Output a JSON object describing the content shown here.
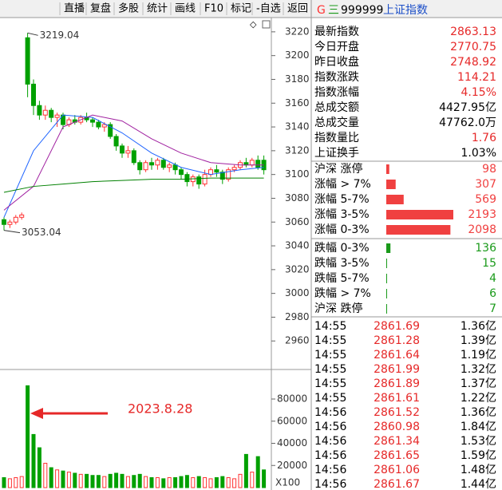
{
  "toolbar": [
    "直播",
    "复盘",
    "多股",
    "统计",
    "画线",
    "F10",
    "标记",
    "-自选",
    "返回"
  ],
  "chart": {
    "type": "candlestick",
    "ylim": [
      2936,
      3232
    ],
    "yticks": [
      3220,
      3200,
      3180,
      3160,
      3140,
      3120,
      3100,
      3080,
      3060,
      3040,
      3020,
      3000,
      2980,
      2960
    ],
    "up_color": "#ff3232",
    "down_color": "#00a000",
    "candles": {
      "open": [
        3062,
        3058,
        3060,
        3064,
        3215,
        3176,
        3158,
        3150,
        3154,
        3148,
        3150,
        3142,
        3146,
        3144,
        3148,
        3146,
        3144,
        3140,
        3142,
        3132,
        3124,
        3118,
        3120,
        3110,
        3104,
        3110,
        3108,
        3112,
        3106,
        3108,
        3104,
        3100,
        3094,
        3098,
        3092,
        3100,
        3104,
        3102,
        3096,
        3104,
        3106,
        3110,
        3108,
        3112,
        3112
      ],
      "close": [
        3058,
        3060,
        3064,
        3066,
        3176,
        3158,
        3150,
        3154,
        3148,
        3150,
        3142,
        3146,
        3144,
        3148,
        3146,
        3144,
        3140,
        3142,
        3132,
        3124,
        3118,
        3120,
        3110,
        3104,
        3110,
        3108,
        3112,
        3106,
        3108,
        3104,
        3100,
        3094,
        3098,
        3092,
        3100,
        3104,
        3102,
        3096,
        3104,
        3106,
        3110,
        3108,
        3112,
        3106,
        3104
      ],
      "high": [
        3064,
        3062,
        3066,
        3068,
        3219.04,
        3180,
        3162,
        3158,
        3156,
        3152,
        3152,
        3148,
        3150,
        3150,
        3152,
        3148,
        3146,
        3144,
        3144,
        3134,
        3126,
        3124,
        3122,
        3112,
        3112,
        3114,
        3114,
        3114,
        3110,
        3110,
        3106,
        3102,
        3100,
        3100,
        3104,
        3106,
        3108,
        3104,
        3106,
        3108,
        3112,
        3114,
        3114,
        3116,
        3116
      ],
      "low": [
        3053.04,
        3055,
        3058,
        3062,
        3165,
        3150,
        3146,
        3146,
        3144,
        3140,
        3138,
        3140,
        3142,
        3142,
        3144,
        3140,
        3138,
        3136,
        3130,
        3120,
        3114,
        3114,
        3108,
        3100,
        3102,
        3104,
        3104,
        3104,
        3102,
        3100,
        3096,
        3090,
        3090,
        3088,
        3090,
        3098,
        3098,
        3092,
        3094,
        3102,
        3104,
        3106,
        3106,
        3104,
        3100
      ]
    },
    "ma": [
      {
        "color": "#1e64ff",
        "x": [
          0,
          5,
          10,
          15,
          20,
          25,
          30,
          35,
          40,
          44
        ],
        "values": [
          3064,
          3120,
          3150,
          3148,
          3135,
          3118,
          3106,
          3100,
          3104,
          3106
        ]
      },
      {
        "color": "#a020a0",
        "x": [
          0,
          5,
          10,
          15,
          20,
          25,
          30,
          35,
          40,
          44
        ],
        "values": [
          3070,
          3090,
          3140,
          3150,
          3145,
          3130,
          3118,
          3110,
          3108,
          3108
        ]
      },
      {
        "color": "#008000",
        "x": [
          0,
          5,
          10,
          15,
          20,
          25,
          30,
          35,
          40,
          44
        ],
        "values": [
          3085,
          3090,
          3092,
          3094,
          3095,
          3096,
          3096,
          3097,
          3097,
          3097
        ]
      }
    ],
    "annotation": "2023.8.28",
    "volume": {
      "ylim": [
        0,
        106667
      ],
      "yticks": [
        80000,
        60000,
        40000,
        20000
      ],
      "unit": "X100",
      "values": [
        9000,
        8000,
        9000,
        10000,
        92000,
        48000,
        36000,
        22000,
        18000,
        16000,
        15000,
        14000,
        13000,
        12000,
        12000,
        11000,
        11000,
        10000,
        12000,
        13000,
        12000,
        10000,
        11000,
        12000,
        10000,
        9000,
        9000,
        8000,
        9000,
        9000,
        10000,
        11000,
        9000,
        10000,
        9000,
        8000,
        9000,
        10000,
        9000,
        8000,
        12000,
        30000,
        14000,
        28000,
        16000
      ]
    }
  },
  "quote": {
    "prefix": "G",
    "icon": "三",
    "code": "999999",
    "name": "上证指数",
    "rows": [
      {
        "label": "最新指数",
        "value": 2863.13
      },
      {
        "label": "今日开盘",
        "value": 2770.75
      },
      {
        "label": "昨日收盘",
        "value": 2748.92
      },
      {
        "label": "指数涨跌",
        "value": 114.21
      },
      {
        "label": "指数涨幅",
        "value": "4.15%"
      },
      {
        "label": "总成交额",
        "value": "4427.95亿"
      },
      {
        "label": "总成交量",
        "value": "47762.0万"
      },
      {
        "label": "指数量比",
        "value": 1.76
      },
      {
        "label": "上证换手",
        "value": "1.03%"
      }
    ]
  },
  "breadth_up": [
    {
      "label": "沪深 涨停",
      "value": 98
    },
    {
      "label": "涨幅 > 7%",
      "value": 307
    },
    {
      "label": "涨幅 5-7%",
      "value": 569
    },
    {
      "label": "涨幅 3-5%",
      "value": 2193
    },
    {
      "label": "涨幅 0-3%",
      "value": 2098
    }
  ],
  "breadth_down": [
    {
      "label": "跌幅 0-3%",
      "value": 136
    },
    {
      "label": "跌幅 3-5%",
      "value": 15
    },
    {
      "label": "跌幅 5-7%",
      "value": 4
    },
    {
      "label": "跌幅 > 7%",
      "value": 6
    },
    {
      "label": "沪深 跌停",
      "value": 7
    }
  ],
  "trades": [
    [
      "14:55",
      2861.69,
      "1.36亿"
    ],
    [
      "14:55",
      2861.28,
      "1.39亿"
    ],
    [
      "14:55",
      2861.64,
      "1.19亿"
    ],
    [
      "14:55",
      2861.99,
      "1.32亿"
    ],
    [
      "14:55",
      2861.89,
      "1.37亿"
    ],
    [
      "14:55",
      2861.61,
      "1.22亿"
    ],
    [
      "14:56",
      2861.52,
      "1.36亿"
    ],
    [
      "14:56",
      2860.98,
      "1.84亿"
    ],
    [
      "14:56",
      2861.34,
      "1.53亿"
    ],
    [
      "14:56",
      2861.65,
      "1.59亿"
    ],
    [
      "14:56",
      2861.06,
      "1.48亿"
    ],
    [
      "14:56",
      2861.67,
      "1.44亿"
    ]
  ]
}
